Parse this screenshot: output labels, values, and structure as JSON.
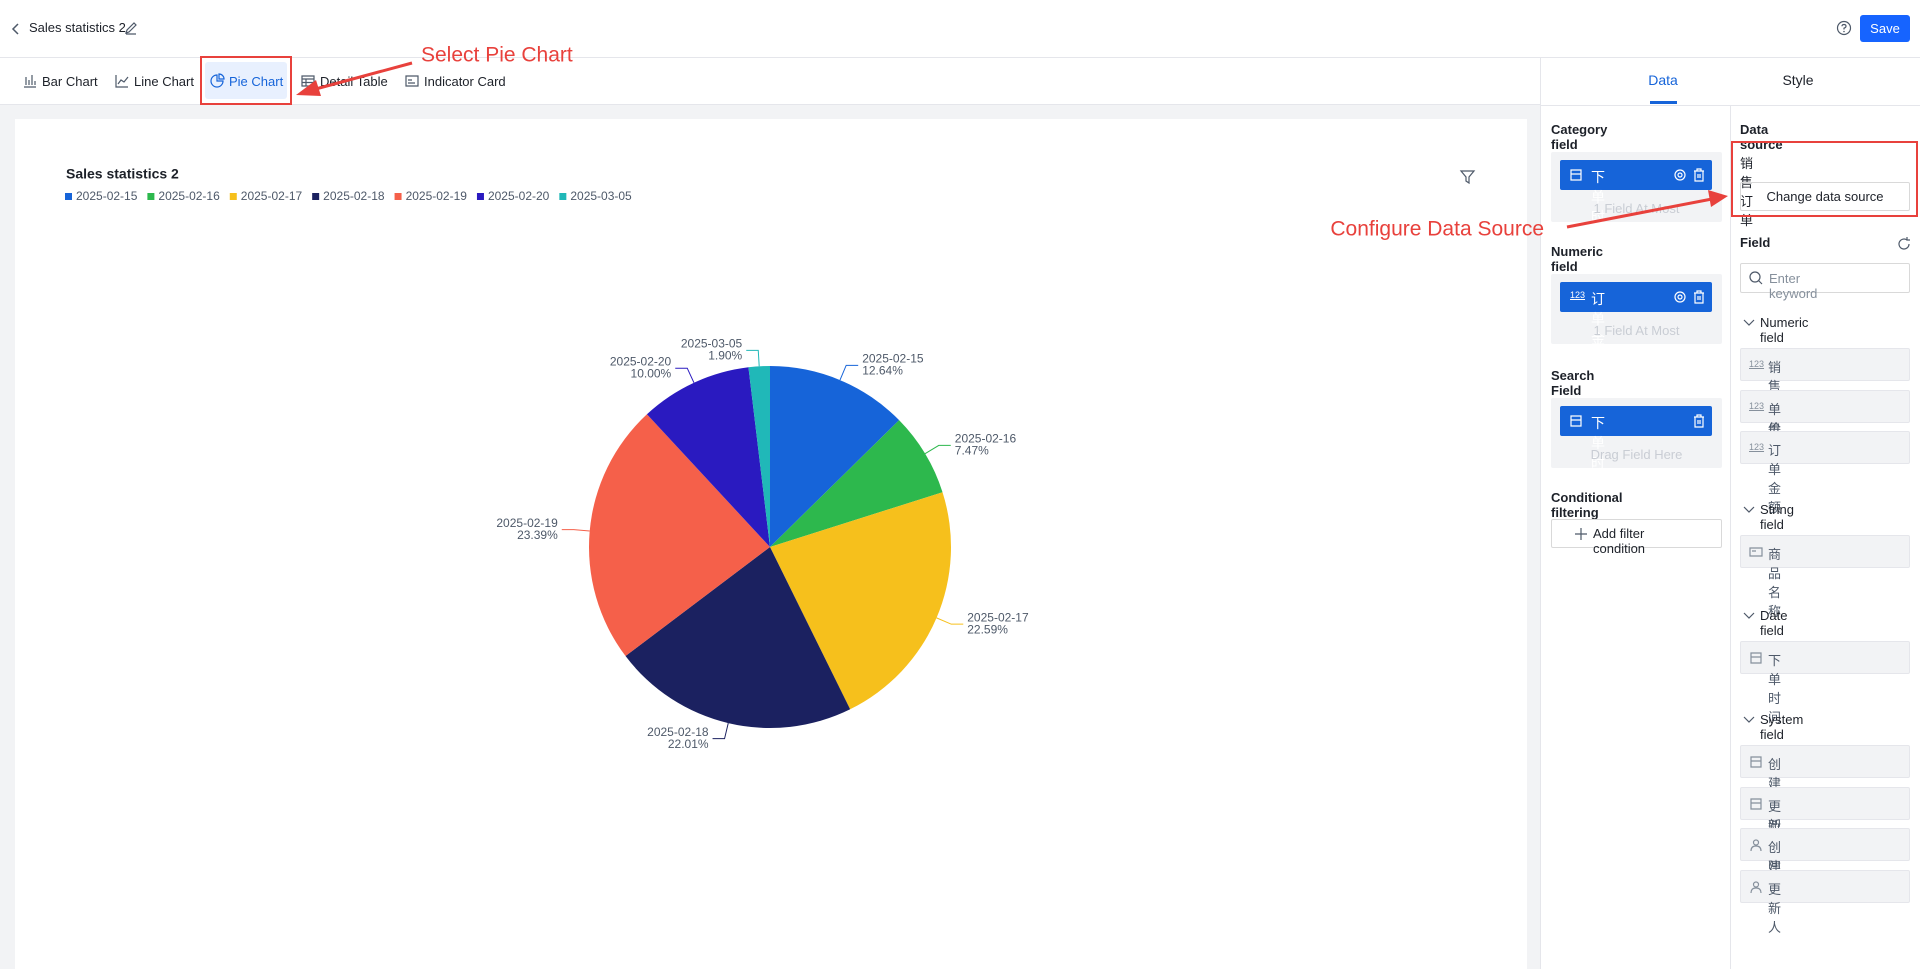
{
  "header": {
    "title": "Sales statistics 2",
    "save": "Save"
  },
  "tabs": [
    "Bar Chart",
    "Line Chart",
    "Pie Chart",
    "Detail Table",
    "Indicator Card"
  ],
  "chart_data": {
    "type": "pie",
    "title": "Sales statistics 2",
    "categories": [
      "2025-02-15",
      "2025-02-16",
      "2025-02-17",
      "2025-02-18",
      "2025-02-19",
      "2025-02-20",
      "2025-03-05"
    ],
    "values": [
      12.64,
      7.47,
      22.59,
      22.01,
      23.39,
      10.0,
      1.9
    ],
    "value_labels": [
      "12.64%",
      "7.47%",
      "22.59%",
      "22.01%",
      "23.39%",
      "10.00%",
      "1.90%"
    ],
    "colors": [
      "#1664d9",
      "#2db84d",
      "#f6c01c",
      "#1b2160",
      "#f5604a",
      "#2a1ac0",
      "#20b8b8"
    ],
    "legend": "top-left"
  },
  "panel_tabs": [
    "Data",
    "Style"
  ],
  "config": {
    "numeric_icon": "123",
    "category_field": {
      "label": "Category field",
      "chip": "下单时间",
      "hint": "1 Field At Most"
    },
    "numeric_field": {
      "label": "Numeric field",
      "chip": "订单金额",
      "hint": "1 Field At Most"
    },
    "search_field": {
      "label": "Search Field",
      "chip": "下单时间",
      "hint": "Drag Field Here"
    },
    "filter": {
      "label": "Conditional filtering",
      "button": "Add filter condition"
    }
  },
  "data_source": {
    "label": "Data source",
    "name": "销售订单",
    "button": "Change data source"
  },
  "fields": {
    "label": "Field",
    "placeholder": "Enter keyword",
    "groups": [
      {
        "name": "Numeric field",
        "items": [
          "销售数量",
          "单价",
          "订单金额"
        ]
      },
      {
        "name": "String field",
        "items": [
          "商品名称"
        ]
      },
      {
        "name": "Date field",
        "items": [
          "下单时间"
        ]
      },
      {
        "name": "System field",
        "items": [
          "创建时间",
          "更新时间",
          "创建人",
          "更新人"
        ]
      }
    ]
  },
  "annotations": [
    "Select Pie Chart",
    "Configure Data Source"
  ]
}
